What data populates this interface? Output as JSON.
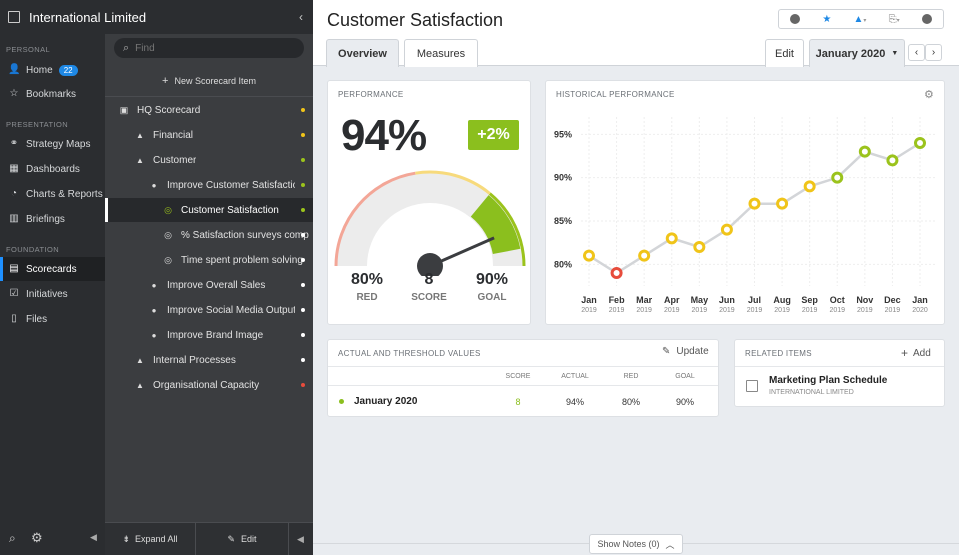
{
  "app": {
    "org_name": "International Limited"
  },
  "nav": {
    "sections": {
      "personal": "PERSONAL",
      "presentation": "PRESENTATION",
      "foundation": "FOUNDATION"
    },
    "home": "Home",
    "home_badge": "22",
    "bookmarks": "Bookmarks",
    "strategy_maps": "Strategy Maps",
    "dashboards": "Dashboards",
    "charts_reports": "Charts & Reports",
    "briefings": "Briefings",
    "scorecards": "Scorecards",
    "initiatives": "Initiatives",
    "files": "Files"
  },
  "tree": {
    "search_placeholder": "Find",
    "new_item": "New Scorecard Item",
    "items": [
      {
        "label": "HQ Scorecard",
        "color": "#f0c419"
      },
      {
        "label": "Financial",
        "color": "#f0c419"
      },
      {
        "label": "Customer",
        "color": "#9bc31c"
      },
      {
        "label": "Improve Customer Satisfaction",
        "color": "#9bc31c"
      },
      {
        "label": "Customer Satisfaction",
        "color": "#9bc31c"
      },
      {
        "label": "% Satisfaction surveys completed",
        "color": "#ffffff"
      },
      {
        "label": "Time spent problem solving",
        "color": "#ffffff"
      },
      {
        "label": "Improve Overall Sales",
        "color": "#ffffff"
      },
      {
        "label": "Improve Social Media Output",
        "color": "#ffffff"
      },
      {
        "label": "Improve Brand Image",
        "color": "#ffffff"
      },
      {
        "label": "Internal Processes",
        "color": "#ffffff"
      },
      {
        "label": "Organisational Capacity",
        "color": "#e74c3c"
      }
    ],
    "expand_all": "Expand All",
    "edit": "Edit"
  },
  "header": {
    "title": "Customer Satisfaction",
    "tab_overview": "Overview",
    "tab_measures": "Measures",
    "edit": "Edit",
    "period": "January 2020"
  },
  "performance": {
    "heading": "PERFORMANCE",
    "value": "94%",
    "change": "+2%",
    "red_value": "80%",
    "red_label": "RED",
    "score_value": "8",
    "score_label": "SCORE",
    "goal_value": "90%",
    "goal_label": "GOAL",
    "gauge_level": 0.94
  },
  "chart_data": {
    "type": "line",
    "title": "HISTORICAL PERFORMANCE",
    "x": [
      "Jan 2019",
      "Feb 2019",
      "Mar 2019",
      "Apr 2019",
      "May 2019",
      "Jun 2019",
      "Jul 2019",
      "Aug 2019",
      "Sep 2019",
      "Oct 2019",
      "Nov 2019",
      "Dec 2019",
      "Jan 2020"
    ],
    "x_month": [
      "Jan",
      "Feb",
      "Mar",
      "Apr",
      "May",
      "Jun",
      "Jul",
      "Aug",
      "Sep",
      "Oct",
      "Nov",
      "Dec",
      "Jan"
    ],
    "x_year": [
      "2019",
      "2019",
      "2019",
      "2019",
      "2019",
      "2019",
      "2019",
      "2019",
      "2019",
      "2019",
      "2019",
      "2019",
      "2020"
    ],
    "series": [
      {
        "values": [
          81,
          79,
          81,
          83,
          82,
          84,
          87,
          87,
          89,
          90,
          93,
          92,
          94
        ],
        "status": [
          "yellow",
          "red",
          "yellow",
          "yellow",
          "yellow",
          "yellow",
          "yellow",
          "yellow",
          "yellow",
          "green",
          "green",
          "green",
          "green"
        ]
      }
    ],
    "yticks": [
      "95%",
      "90%",
      "85%",
      "80%"
    ],
    "ytick_values": [
      95,
      90,
      85,
      80
    ],
    "ylim": [
      77.5,
      97
    ],
    "grid": true,
    "colors": {
      "yellow": "#f0c419",
      "red": "#e74c3c",
      "green": "#9bc31c"
    }
  },
  "thresholds": {
    "heading": "ACTUAL AND THRESHOLD VALUES",
    "update": "Update",
    "columns": [
      "SCORE",
      "ACTUAL",
      "RED",
      "GOAL"
    ],
    "row": {
      "period": "January 2020",
      "score": "8",
      "actual": "94%",
      "red": "80%",
      "goal": "90%"
    }
  },
  "related": {
    "heading": "RELATED ITEMS",
    "add": "Add",
    "item_title": "Marketing Plan Schedule",
    "item_sub": "INTERNATIONAL LIMITED"
  },
  "footer": {
    "show_notes": "Show Notes (0)"
  }
}
